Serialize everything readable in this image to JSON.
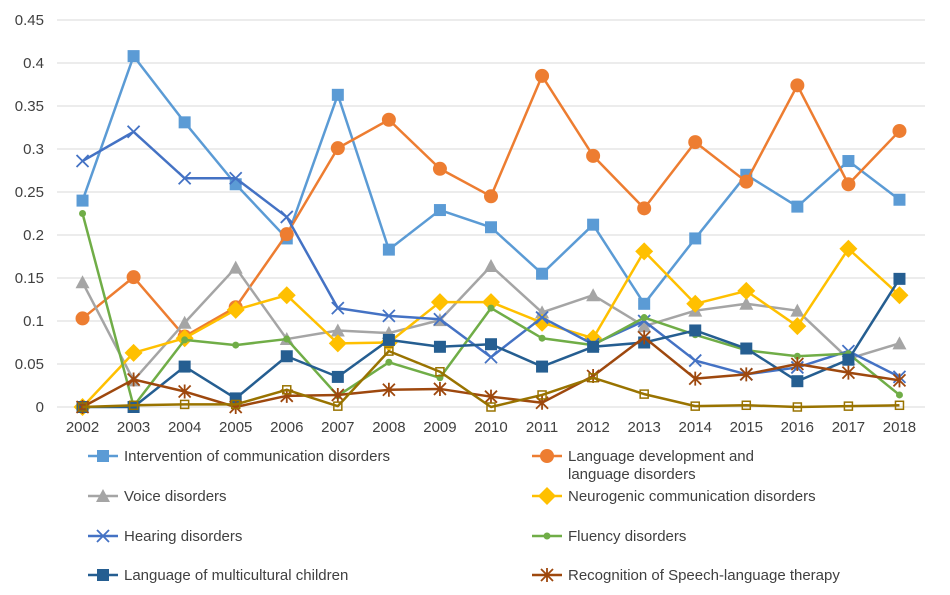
{
  "chart_data": {
    "type": "line",
    "title": "",
    "xlabel": "",
    "ylabel": "",
    "ylim": [
      0,
      0.45
    ],
    "yticks": [
      0,
      0.05,
      0.1,
      0.15,
      0.2,
      0.25,
      0.3,
      0.35,
      0.4,
      0.45
    ],
    "ytick_labels": [
      "0",
      "0.05",
      "0.1",
      "0.15",
      "0.2",
      "0.25",
      "0.3",
      "0.35",
      "0.4",
      "0.45"
    ],
    "grid": true,
    "legend_position": "bottom",
    "categories": [
      "2002",
      "2003",
      "2004",
      "2005",
      "2006",
      "2007",
      "2008",
      "2009",
      "2010",
      "2011",
      "2012",
      "2013",
      "2014",
      "2015",
      "2016",
      "2017",
      "2018"
    ],
    "series": [
      {
        "name": "Intervention of  communication disorders",
        "color": "#5B9BD5",
        "marker": "square",
        "values": [
          0.24,
          0.408,
          0.331,
          0.259,
          0.196,
          0.363,
          0.183,
          0.229,
          0.209,
          0.155,
          0.212,
          0.12,
          0.196,
          0.27,
          0.233,
          0.286,
          0.241
        ]
      },
      {
        "name": "Language development and\nlanguage disorders",
        "color": "#ED7D31",
        "marker": "circle",
        "values": [
          0.103,
          0.151,
          0.082,
          0.116,
          0.201,
          0.301,
          0.334,
          0.277,
          0.245,
          0.385,
          0.292,
          0.231,
          0.308,
          0.262,
          0.374,
          0.259,
          0.321
        ]
      },
      {
        "name": "Voice disorders",
        "color": "#A5A5A5",
        "marker": "triangle",
        "values": [
          0.145,
          0.031,
          0.098,
          0.162,
          0.079,
          0.089,
          0.086,
          0.101,
          0.164,
          0.11,
          0.13,
          0.094,
          0.112,
          0.12,
          0.112,
          0.056,
          0.074
        ]
      },
      {
        "name": "Neurogenic communication disorders",
        "color": "#FFC000",
        "marker": "diamond",
        "values": [
          0.0,
          0.063,
          0.08,
          0.113,
          0.13,
          0.074,
          0.075,
          0.122,
          0.122,
          0.098,
          0.08,
          0.181,
          0.12,
          0.135,
          0.094,
          0.184,
          0.13
        ]
      },
      {
        "name": "Hearing disorders",
        "color": "#4472C4",
        "marker": "x",
        "values": [
          0.286,
          0.32,
          0.266,
          0.266,
          0.221,
          0.115,
          0.106,
          0.102,
          0.058,
          0.104,
          0.073,
          0.1,
          0.054,
          0.038,
          0.046,
          0.065,
          0.035
        ]
      },
      {
        "name": "Fluency disorders",
        "color": "#70AD47",
        "marker": "dot",
        "values": [
          0.225,
          0.001,
          0.078,
          0.072,
          0.079,
          0.013,
          0.052,
          0.034,
          0.115,
          0.08,
          0.072,
          0.104,
          0.084,
          0.066,
          0.059,
          0.062,
          0.014
        ]
      },
      {
        "name": "Language of multicultural children",
        "color": "#255E91",
        "marker": "square",
        "values": [
          0.0,
          0.0,
          0.047,
          0.01,
          0.059,
          0.035,
          0.078,
          0.07,
          0.073,
          0.047,
          0.07,
          0.075,
          0.089,
          0.068,
          0.03,
          0.055,
          0.149
        ]
      },
      {
        "name": "Recognition of Speech-language therapy",
        "color": "#9E480E",
        "marker": "star",
        "values": [
          0.0,
          0.032,
          0.018,
          0.0,
          0.013,
          0.014,
          0.02,
          0.021,
          0.012,
          0.005,
          0.036,
          0.081,
          0.033,
          0.038,
          0.05,
          0.04,
          0.031
        ]
      },
      {
        "name": "",
        "color": "#997300",
        "marker": "square-open",
        "legend": false,
        "values": [
          0.0,
          0.002,
          0.003,
          0.003,
          0.02,
          0.001,
          0.065,
          0.041,
          0.0,
          0.014,
          0.034,
          0.015,
          0.001,
          0.002,
          0.0,
          0.001,
          0.002
        ]
      }
    ]
  }
}
